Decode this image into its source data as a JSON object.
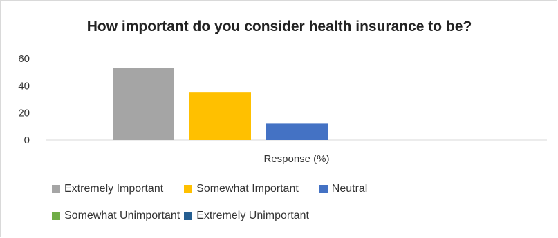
{
  "chart_data": {
    "type": "bar",
    "title": "How important do you consider health insurance to be?",
    "xlabel": "Response (%)",
    "ylabel": "",
    "ylim": [
      0,
      60
    ],
    "yticks": [
      "0",
      "20",
      "40",
      "60"
    ],
    "grid": false,
    "legend_position": "bottom",
    "series": [
      {
        "name": "Extremely Important",
        "values": [
          53
        ],
        "color": "#a5a5a5"
      },
      {
        "name": "Somewhat Important",
        "values": [
          35
        ],
        "color": "#ffc000"
      },
      {
        "name": "Neutral",
        "values": [
          12
        ],
        "color": "#4472c4"
      },
      {
        "name": "Somewhat Unimportant",
        "values": [
          0
        ],
        "color": "#70ad47"
      },
      {
        "name": "Extremely Unimportant",
        "values": [
          0
        ],
        "color": "#255e91"
      }
    ]
  }
}
